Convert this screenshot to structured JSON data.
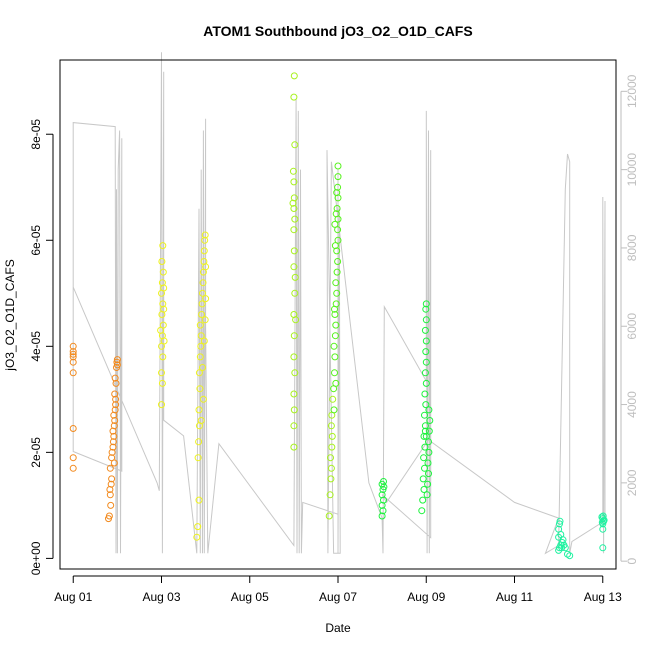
{
  "chart_data": {
    "type": "scatter",
    "title": "ATOM1 Southbound jO3_O2_O1D_CAFS",
    "xlabel": "Date",
    "ylabel": "jO3_O2_O1D_CAFS",
    "x_range": [
      -0.3,
      12.3
    ],
    "ylim": [
      -2e-06,
      9.4e-05
    ],
    "y2lim": [
      -200,
      12800
    ],
    "x_ticks": [
      {
        "v": 0,
        "label": "Aug 01"
      },
      {
        "v": 2,
        "label": "Aug 03"
      },
      {
        "v": 4,
        "label": "Aug 05"
      },
      {
        "v": 6,
        "label": "Aug 07"
      },
      {
        "v": 8,
        "label": "Aug 09"
      },
      {
        "v": 10,
        "label": "Aug 11"
      },
      {
        "v": 12,
        "label": "Aug 13"
      }
    ],
    "y_ticks": [
      {
        "v": 0,
        "label": "0e+00"
      },
      {
        "v": 2e-05,
        "label": "2e-05"
      },
      {
        "v": 4e-05,
        "label": "4e-05"
      },
      {
        "v": 6e-05,
        "label": "6e-05"
      },
      {
        "v": 8e-05,
        "label": "8e-05"
      }
    ],
    "y2_ticks": [
      {
        "v": 0,
        "label": "0"
      },
      {
        "v": 2000,
        "label": "2000"
      },
      {
        "v": 4000,
        "label": "4000"
      },
      {
        "v": 6000,
        "label": "6000"
      },
      {
        "v": 8000,
        "label": "8000"
      },
      {
        "v": 10000,
        "label": "10000"
      },
      {
        "v": 12000,
        "label": "12000"
      }
    ],
    "altitude_color": "#c8c8c8",
    "altitude_profile": [
      [
        0.0,
        5600
      ],
      [
        0.0,
        10600
      ],
      [
        0.0,
        11200
      ],
      [
        0.95,
        11100
      ],
      [
        0.97,
        200
      ],
      [
        0.98,
        9500
      ],
      [
        1.0,
        200
      ],
      [
        1.02,
        10000
      ],
      [
        1.05,
        11000
      ],
      [
        1.07,
        200
      ],
      [
        1.1,
        10800
      ],
      [
        1.1,
        2300
      ],
      [
        0.0,
        2800
      ],
      [
        0.0,
        7000
      ],
      [
        1.9,
        2000
      ],
      [
        1.95,
        1800
      ],
      [
        2.0,
        13000
      ],
      [
        2.02,
        200
      ],
      [
        2.05,
        12500
      ],
      [
        2.05,
        3600
      ],
      [
        2.5,
        3200
      ],
      [
        2.8,
        200
      ],
      [
        2.85,
        9000
      ],
      [
        2.88,
        200
      ],
      [
        2.9,
        10000
      ],
      [
        2.93,
        200
      ],
      [
        2.95,
        11000
      ],
      [
        2.97,
        200
      ],
      [
        3.0,
        11300
      ],
      [
        3.0,
        6000
      ],
      [
        3.05,
        200
      ],
      [
        3.3,
        3000
      ],
      [
        5.0,
        400
      ],
      [
        5.05,
        11800
      ],
      [
        5.07,
        200
      ],
      [
        5.1,
        11500
      ],
      [
        5.12,
        200
      ],
      [
        5.15,
        10000
      ],
      [
        5.17,
        200
      ],
      [
        5.2,
        1500
      ],
      [
        6.0,
        1200
      ],
      [
        6.0,
        10000
      ],
      [
        6.0,
        200
      ],
      [
        6.03,
        9000
      ],
      [
        6.05,
        200
      ],
      [
        5.9,
        200
      ],
      [
        5.75,
        10500
      ],
      [
        5.77,
        200
      ],
      [
        5.85,
        10200
      ],
      [
        6.7,
        2000
      ],
      [
        7.0,
        1100
      ],
      [
        7.02,
        200
      ],
      [
        7.05,
        6500
      ],
      [
        7.3,
        6000
      ],
      [
        8.0,
        4600
      ],
      [
        8.0,
        11500
      ],
      [
        8.02,
        200
      ],
      [
        8.05,
        11000
      ],
      [
        8.07,
        200
      ],
      [
        8.1,
        10500
      ],
      [
        8.1,
        600
      ],
      [
        7.0,
        1700
      ],
      [
        7.1,
        1500
      ],
      [
        8.05,
        3100
      ],
      [
        10.0,
        1500
      ],
      [
        11.0,
        1100
      ],
      [
        10.7,
        200
      ],
      [
        11.0,
        400
      ],
      [
        11.15,
        9500
      ],
      [
        11.2,
        10400
      ],
      [
        11.25,
        10200
      ],
      [
        11.25,
        200
      ],
      [
        11.3,
        500
      ],
      [
        12.0,
        1000
      ],
      [
        12.0,
        9300
      ],
      [
        12.02,
        200
      ],
      [
        12.05,
        9200
      ],
      [
        12.05,
        1100
      ]
    ],
    "series": [
      {
        "color": "#f28a1e",
        "points": [
          [
            0.0,
            1.7e-05
          ],
          [
            0.0,
            1.9e-05
          ],
          [
            0.0,
            2.45e-05
          ],
          [
            0.0,
            3.5e-05
          ],
          [
            0.0,
            3.8e-05
          ],
          [
            0.0,
            3.85e-05
          ],
          [
            0.0,
            3.9e-05
          ],
          [
            0.0,
            4e-05
          ],
          [
            0.0,
            3.7e-05
          ],
          [
            0.8,
            7.5e-06
          ],
          [
            0.82,
            8e-06
          ],
          [
            0.85,
            1e-05
          ],
          [
            0.84,
            1.2e-05
          ],
          [
            0.83,
            1.3e-05
          ],
          [
            0.86,
            1.4e-05
          ],
          [
            0.87,
            1.5e-05
          ],
          [
            0.84,
            1.7e-05
          ],
          [
            0.87,
            1.9e-05
          ],
          [
            0.88,
            2e-05
          ],
          [
            0.9,
            2.1e-05
          ],
          [
            0.91,
            2.2e-05
          ],
          [
            0.92,
            2.3e-05
          ],
          [
            0.9,
            2.4e-05
          ],
          [
            0.93,
            2.5e-05
          ],
          [
            0.94,
            2.6e-05
          ],
          [
            0.92,
            2.7e-05
          ],
          [
            0.95,
            2.8e-05
          ],
          [
            0.96,
            3e-05
          ],
          [
            0.94,
            3.1e-05
          ],
          [
            0.97,
            3.3e-05
          ],
          [
            0.95,
            3.4e-05
          ],
          [
            0.98,
            3.6e-05
          ],
          [
            0.99,
            3.7e-05
          ],
          [
            1.0,
            3.65e-05
          ],
          [
            1.0,
            3.75e-05
          ],
          [
            0.93,
            1.8e-05
          ],
          [
            0.96,
            2.9e-05
          ]
        ]
      },
      {
        "color": "#eef21e",
        "points": [
          [
            2.0,
            2.9e-05
          ],
          [
            2.02,
            3.3e-05
          ],
          [
            2.0,
            3.5e-05
          ],
          [
            2.03,
            3.8e-05
          ],
          [
            2.0,
            4e-05
          ],
          [
            2.02,
            4.2e-05
          ],
          [
            2.04,
            4.4e-05
          ],
          [
            2.01,
            4.6e-05
          ],
          [
            2.03,
            4.8e-05
          ],
          [
            2.0,
            5e-05
          ],
          [
            2.02,
            5.2e-05
          ],
          [
            2.04,
            5.4e-05
          ],
          [
            2.01,
            5.6e-05
          ],
          [
            2.03,
            5.9e-05
          ],
          [
            2.05,
            5.1e-05
          ],
          [
            2.05,
            4.7e-05
          ],
          [
            2.06,
            4.1e-05
          ],
          [
            1.98,
            4.3e-05
          ],
          [
            2.8,
            4e-06
          ],
          [
            2.82,
            6e-06
          ],
          [
            2.85,
            1.1e-05
          ],
          [
            2.83,
            1.9e-05
          ],
          [
            2.84,
            2.2e-05
          ],
          [
            2.86,
            2.5e-05
          ],
          [
            2.85,
            2.8e-05
          ],
          [
            2.87,
            3.2e-05
          ],
          [
            2.86,
            3.5e-05
          ],
          [
            2.88,
            3.8e-05
          ],
          [
            2.89,
            4e-05
          ],
          [
            2.9,
            4.2e-05
          ],
          [
            2.88,
            4.4e-05
          ],
          [
            2.91,
            4.6e-05
          ],
          [
            2.92,
            4.8e-05
          ],
          [
            2.93,
            5e-05
          ],
          [
            2.94,
            5.2e-05
          ],
          [
            2.95,
            5.4e-05
          ],
          [
            2.96,
            5.6e-05
          ],
          [
            2.97,
            5.8e-05
          ],
          [
            2.98,
            6e-05
          ],
          [
            2.99,
            6.1e-05
          ],
          [
            3.0,
            5.5e-05
          ],
          [
            2.95,
            3e-05
          ],
          [
            2.93,
            3.6e-05
          ],
          [
            2.97,
            4.1e-05
          ],
          [
            2.99,
            4.5e-05
          ],
          [
            3.0,
            4.9e-05
          ],
          [
            2.9,
            2.6e-05
          ]
        ]
      },
      {
        "color": "#a8f21e",
        "points": [
          [
            5.0,
            2.1e-05
          ],
          [
            5.0,
            2.5e-05
          ],
          [
            5.01,
            2.8e-05
          ],
          [
            5.0,
            3.1e-05
          ],
          [
            5.02,
            3.5e-05
          ],
          [
            5.0,
            3.8e-05
          ],
          [
            5.01,
            4.2e-05
          ],
          [
            5.0,
            4.6e-05
          ],
          [
            5.02,
            5e-05
          ],
          [
            5.0,
            5.5e-05
          ],
          [
            5.01,
            5.8e-05
          ],
          [
            5.0,
            6.2e-05
          ],
          [
            5.02,
            6.4e-05
          ],
          [
            5.0,
            6.6e-05
          ],
          [
            5.01,
            6.8e-05
          ],
          [
            5.0,
            7.1e-05
          ],
          [
            5.02,
            7.8e-05
          ],
          [
            5.0,
            8.7e-05
          ],
          [
            5.01,
            9.1e-05
          ],
          [
            5.03,
            5.3e-05
          ],
          [
            5.04,
            4.5e-05
          ],
          [
            4.98,
            6.7e-05
          ],
          [
            4.99,
            7.3e-05
          ],
          [
            5.8,
            8e-06
          ],
          [
            5.82,
            1.2e-05
          ],
          [
            5.84,
            1.5e-05
          ],
          [
            5.85,
            1.7e-05
          ],
          [
            5.83,
            1.9e-05
          ],
          [
            5.86,
            2.1e-05
          ],
          [
            5.87,
            2.3e-05
          ],
          [
            5.85,
            2.5e-05
          ],
          [
            5.86,
            2.7e-05
          ],
          [
            5.88,
            3e-05
          ]
        ]
      },
      {
        "color": "#57f21e",
        "points": [
          [
            5.9,
            3.2e-05
          ],
          [
            5.92,
            3.5e-05
          ],
          [
            5.93,
            3.8e-05
          ],
          [
            5.91,
            4e-05
          ],
          [
            5.94,
            4.2e-05
          ],
          [
            5.95,
            4.4e-05
          ],
          [
            5.93,
            4.6e-05
          ],
          [
            5.96,
            4.8e-05
          ],
          [
            5.97,
            5e-05
          ],
          [
            5.95,
            5.2e-05
          ],
          [
            5.98,
            5.4e-05
          ],
          [
            5.99,
            5.6e-05
          ],
          [
            5.97,
            5.8e-05
          ],
          [
            6.0,
            6e-05
          ],
          [
            5.99,
            6.2e-05
          ],
          [
            6.0,
            6.4e-05
          ],
          [
            5.98,
            6.6e-05
          ],
          [
            6.0,
            6.8e-05
          ],
          [
            5.99,
            7e-05
          ],
          [
            6.0,
            7.2e-05
          ],
          [
            6.0,
            7.4e-05
          ],
          [
            5.96,
            6.5e-05
          ],
          [
            5.97,
            6.9e-05
          ],
          [
            5.93,
            6.3e-05
          ],
          [
            5.94,
            5.9e-05
          ],
          [
            5.92,
            4.7e-05
          ],
          [
            5.95,
            3.3e-05
          ],
          [
            5.91,
            2.8e-05
          ]
        ]
      },
      {
        "color": "#1ef23e",
        "points": [
          [
            7.0,
            8e-06
          ],
          [
            7.02,
            9e-06
          ],
          [
            7.0,
            1e-05
          ],
          [
            7.03,
            1.1e-05
          ],
          [
            7.0,
            1.2e-05
          ],
          [
            7.02,
            1.3e-05
          ],
          [
            7.04,
            1.35e-05
          ],
          [
            7.0,
            1.4e-05
          ],
          [
            7.03,
            1.45e-05
          ],
          [
            7.9,
            9e-06
          ],
          [
            7.92,
            1.1e-05
          ],
          [
            7.95,
            1.3e-05
          ],
          [
            7.93,
            1.5e-05
          ],
          [
            7.96,
            1.7e-05
          ],
          [
            7.94,
            1.9e-05
          ],
          [
            7.97,
            2.1e-05
          ],
          [
            7.95,
            2.3e-05
          ],
          [
            7.98,
            2.5e-05
          ],
          [
            7.96,
            2.7e-05
          ],
          [
            7.99,
            2.9e-05
          ],
          [
            7.97,
            3.1e-05
          ],
          [
            8.0,
            3.3e-05
          ],
          [
            7.98,
            3.5e-05
          ],
          [
            8.0,
            3.7e-05
          ],
          [
            7.99,
            3.9e-05
          ],
          [
            8.0,
            4.1e-05
          ],
          [
            7.98,
            4.3e-05
          ],
          [
            8.0,
            4.5e-05
          ],
          [
            7.99,
            4.7e-05
          ],
          [
            8.0,
            4.8e-05
          ],
          [
            8.02,
            1.2e-05
          ],
          [
            8.03,
            1.4e-05
          ],
          [
            8.05,
            1.6e-05
          ],
          [
            8.04,
            1.8e-05
          ],
          [
            8.06,
            2e-05
          ],
          [
            8.05,
            2.2e-05
          ],
          [
            8.07,
            2.4e-05
          ],
          [
            8.08,
            2.6e-05
          ],
          [
            8.06,
            2.8e-05
          ],
          [
            8.0,
            2.3e-05
          ],
          [
            7.98,
            2.4e-05
          ]
        ]
      },
      {
        "color": "#1ef2a0",
        "points": [
          [
            11.0,
            1.5e-06
          ],
          [
            11.02,
            2e-06
          ],
          [
            11.05,
            2.5e-06
          ],
          [
            11.08,
            3e-06
          ],
          [
            11.1,
            3.5e-06
          ],
          [
            11.12,
            2.5e-06
          ],
          [
            11.15,
            2e-06
          ],
          [
            11.2,
            8e-07
          ],
          [
            11.25,
            5e-07
          ],
          [
            11.0,
            4e-06
          ],
          [
            11.0,
            5.5e-06
          ],
          [
            11.02,
            6.5e-06
          ],
          [
            11.03,
            7e-06
          ],
          [
            11.05,
            4.5e-06
          ],
          [
            11.07,
            2e-06
          ],
          [
            12.0,
            2e-06
          ],
          [
            12.0,
            5.5e-06
          ],
          [
            12.0,
            6.5e-06
          ],
          [
            12.02,
            7e-06
          ],
          [
            12.0,
            7.5e-06
          ],
          [
            12.01,
            8e-06
          ],
          [
            11.98,
            7.8e-06
          ],
          [
            12.03,
            7.2e-06
          ],
          [
            11.99,
            6.8e-06
          ]
        ]
      }
    ]
  }
}
